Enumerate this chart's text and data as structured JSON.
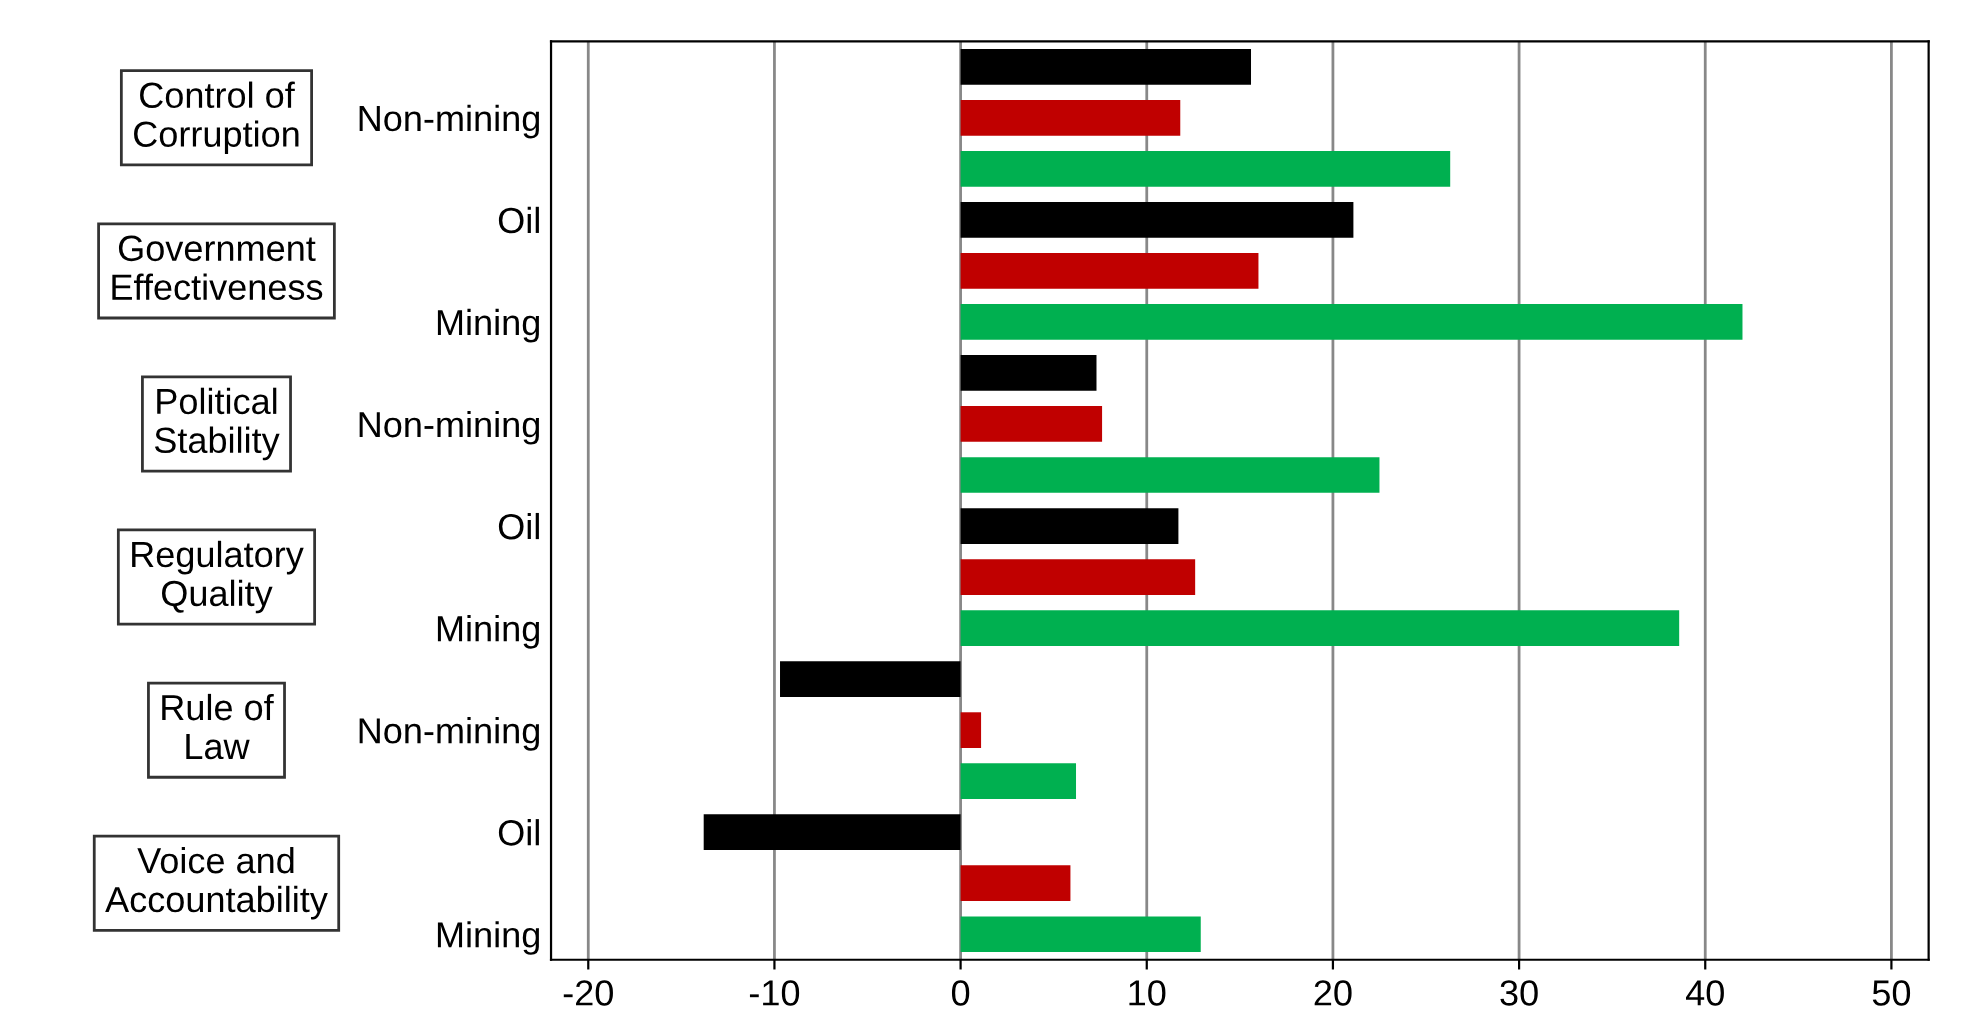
{
  "chart_data": {
    "type": "bar",
    "orientation": "horizontal",
    "categories": [
      null,
      "Non-mining",
      null,
      "Oil",
      null,
      "Mining",
      null,
      "Non-mining",
      null,
      "Oil",
      null,
      "Mining",
      null,
      "Non-mining",
      null,
      "Oil",
      null,
      "Mining"
    ],
    "values": [
      15.6,
      11.8,
      26.3,
      21.1,
      16.0,
      42.0,
      7.3,
      7.6,
      22.5,
      11.7,
      12.6,
      38.6,
      -9.7,
      1.1,
      6.2,
      -13.8,
      5.9,
      12.9
    ],
    "colors": [
      "#000000",
      "#c00000",
      "#00b050",
      "#000000",
      "#c00000",
      "#00b050",
      "#000000",
      "#c00000",
      "#00b050",
      "#000000",
      "#c00000",
      "#00b050",
      "#000000",
      "#c00000",
      "#00b050",
      "#000000",
      "#c00000",
      "#00b050"
    ],
    "annotations": [
      "Control of\nCorruption",
      "Government\nEffectiveness",
      "Political\nStability",
      "Regulatory\nQuality",
      "Rule of\nLaw",
      "Voice and\nAccountability"
    ],
    "xlim": [
      -22,
      52
    ],
    "xticks": [
      -20,
      -10,
      0,
      10,
      20,
      30,
      40,
      50
    ],
    "grid": "x"
  }
}
